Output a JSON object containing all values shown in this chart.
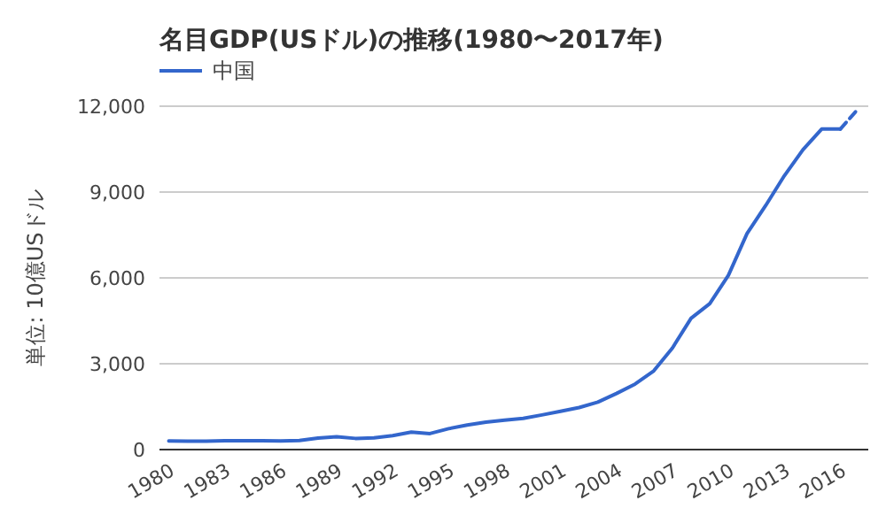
{
  "chart_data": {
    "type": "line",
    "title": "名目GDP(USドル)の推移(1980〜2017年)",
    "ylabel": "単位: 10億USドル",
    "x": [
      1980,
      1981,
      1982,
      1983,
      1984,
      1985,
      1986,
      1987,
      1988,
      1989,
      1990,
      1991,
      1992,
      1993,
      1994,
      1995,
      1996,
      1997,
      1998,
      1999,
      2000,
      2001,
      2002,
      2003,
      2004,
      2005,
      2006,
      2007,
      2008,
      2009,
      2010,
      2011,
      2012,
      2013,
      2014,
      2015,
      2016
    ],
    "series": [
      {
        "name": "中国",
        "color": "#3366cc",
        "line_style": "solid",
        "values": [
          300,
          290,
          290,
          310,
          310,
          310,
          300,
          320,
          400,
          450,
          390,
          410,
          490,
          610,
          560,
          730,
          860,
          960,
          1030,
          1090,
          1210,
          1340,
          1470,
          1660,
          1960,
          2290,
          2750,
          3550,
          4590,
          5100,
          6090,
          7550,
          8530,
          9570,
          10480,
          11200,
          11200
        ]
      },
      {
        "color": "#3366cc",
        "line_style": "dashed",
        "x": [
          2016,
          2017
        ],
        "values": [
          11200,
          11940
        ]
      }
    ],
    "xlim": [
      1979.5,
      2017.5
    ],
    "ylim": [
      0,
      12000
    ],
    "xticks": [
      1980,
      1983,
      1986,
      1989,
      1992,
      1995,
      1998,
      2001,
      2004,
      2007,
      2010,
      2013,
      2016
    ],
    "yticks": [
      {
        "value": 0,
        "label": "0"
      },
      {
        "value": 3000,
        "label": "3,000"
      },
      {
        "value": 6000,
        "label": "6,000"
      },
      {
        "value": 9000,
        "label": "9,000"
      },
      {
        "value": 12000,
        "label": "12,000"
      }
    ],
    "grid": "y",
    "legend": "top left",
    "marker": "none"
  }
}
